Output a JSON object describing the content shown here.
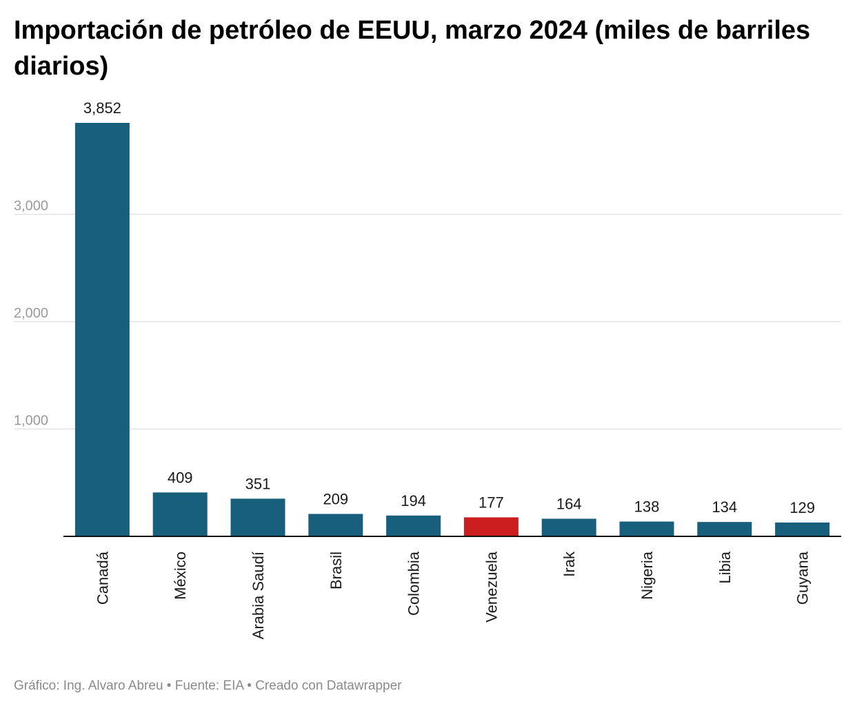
{
  "chart_data": {
    "type": "bar",
    "title": "Importación de petróleo de EEUU, marzo 2024 (miles de barriles diarios)",
    "categories": [
      "Canadá",
      "México",
      "Arabia Saudí",
      "Brasil",
      "Colombia",
      "Venezuela",
      "Irak",
      "Nigeria",
      "Libia",
      "Guyana"
    ],
    "values": [
      3852,
      409,
      351,
      209,
      194,
      177,
      164,
      138,
      134,
      129
    ],
    "value_labels": [
      "3,852",
      "409",
      "351",
      "209",
      "194",
      "177",
      "164",
      "138",
      "134",
      "129"
    ],
    "highlight_category": "Venezuela",
    "yticks": [
      1000,
      2000,
      3000
    ],
    "ytick_labels": [
      "1,000",
      "2,000",
      "3,000"
    ],
    "ylim": [
      0,
      3852
    ],
    "xlabel": "",
    "ylabel": "",
    "grid": true,
    "legend": "none"
  },
  "colors": {
    "bar": "#175f7c",
    "highlight": "#cc1e1e",
    "grid": "#e2e2e2",
    "axis": "#111111"
  },
  "footer": {
    "credit": "Gráfico: Ing. Alvaro Abreu • Fuente: EIA • Creado con Datawrapper"
  }
}
